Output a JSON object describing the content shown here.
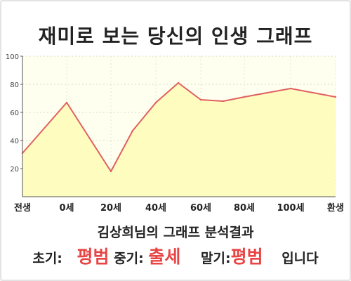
{
  "chart_data": {
    "type": "area",
    "title": "재미로 보는 당신의 인생 그래프",
    "x_ticks": [
      "전생",
      "0세",
      "20세",
      "40세",
      "60세",
      "80세",
      "100세",
      "환생"
    ],
    "y_ticks": [
      "20",
      "40",
      "60",
      "80",
      "100"
    ],
    "ylim": [
      0,
      100
    ],
    "points": [
      {
        "x": "전생",
        "y": 31
      },
      {
        "x": "0세",
        "y": 67
      },
      {
        "x": "20세",
        "y": 18
      },
      {
        "x": "30세",
        "y": 47
      },
      {
        "x": "40세",
        "y": 67
      },
      {
        "x": "50세",
        "y": 81
      },
      {
        "x": "60세",
        "y": 69
      },
      {
        "x": "70세",
        "y": 68
      },
      {
        "x": "80세",
        "y": 71
      },
      {
        "x": "100세",
        "y": 77
      },
      {
        "x": "환생",
        "y": 71
      }
    ],
    "line_color": "#e06060",
    "fill_color": "#fffcc0",
    "plot_bg": "#fffff0",
    "grid": true
  },
  "summary": "김상희님의 그래프 분석결과",
  "result": {
    "early_label": "초기:",
    "early_value": "평범",
    "mid_label": "중기:",
    "mid_value": "출세",
    "late_label": "말기:",
    "late_value": "평범",
    "ending": "입니다"
  }
}
